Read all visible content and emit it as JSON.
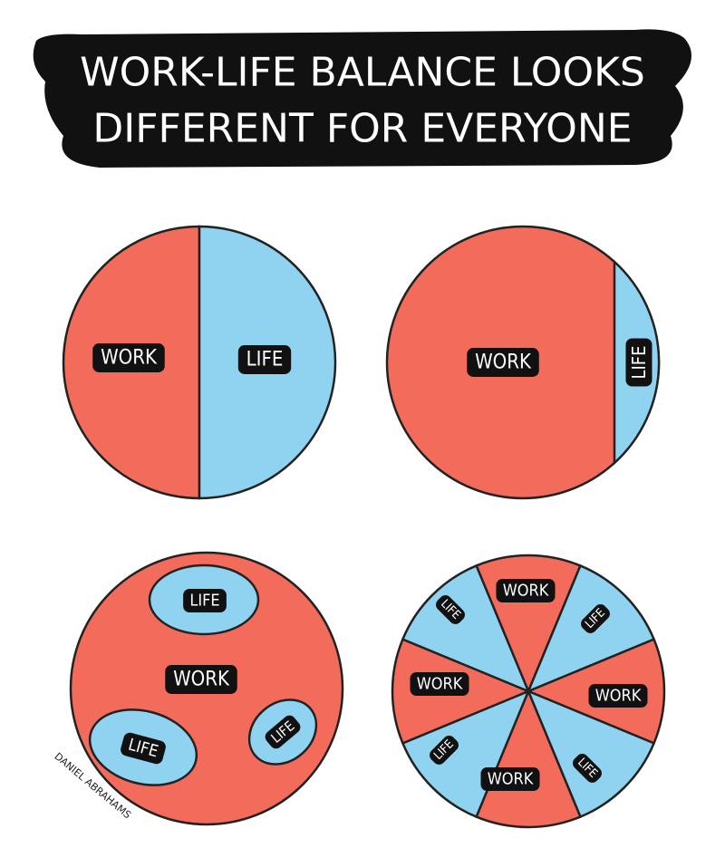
{
  "header": {
    "title_lines": [
      "WORK-LIFE BALANCE LOOKS",
      "DIFFERENT FOR EVERYONE"
    ]
  },
  "panels": [
    {
      "labels": [
        "WORK",
        "LIFE"
      ]
    },
    {
      "labels": [
        "WORK",
        "LIFE"
      ]
    },
    {
      "labels": [
        "LIFE",
        "WORK",
        "LIFE",
        "LIFE"
      ]
    },
    {
      "labels": [
        "WORK",
        "LIFE",
        "LIFE",
        "WORK",
        "WORK",
        "LIFE",
        "LIFE",
        "WORK"
      ]
    }
  ],
  "signature": "DANIEL ABRAHAMS"
}
